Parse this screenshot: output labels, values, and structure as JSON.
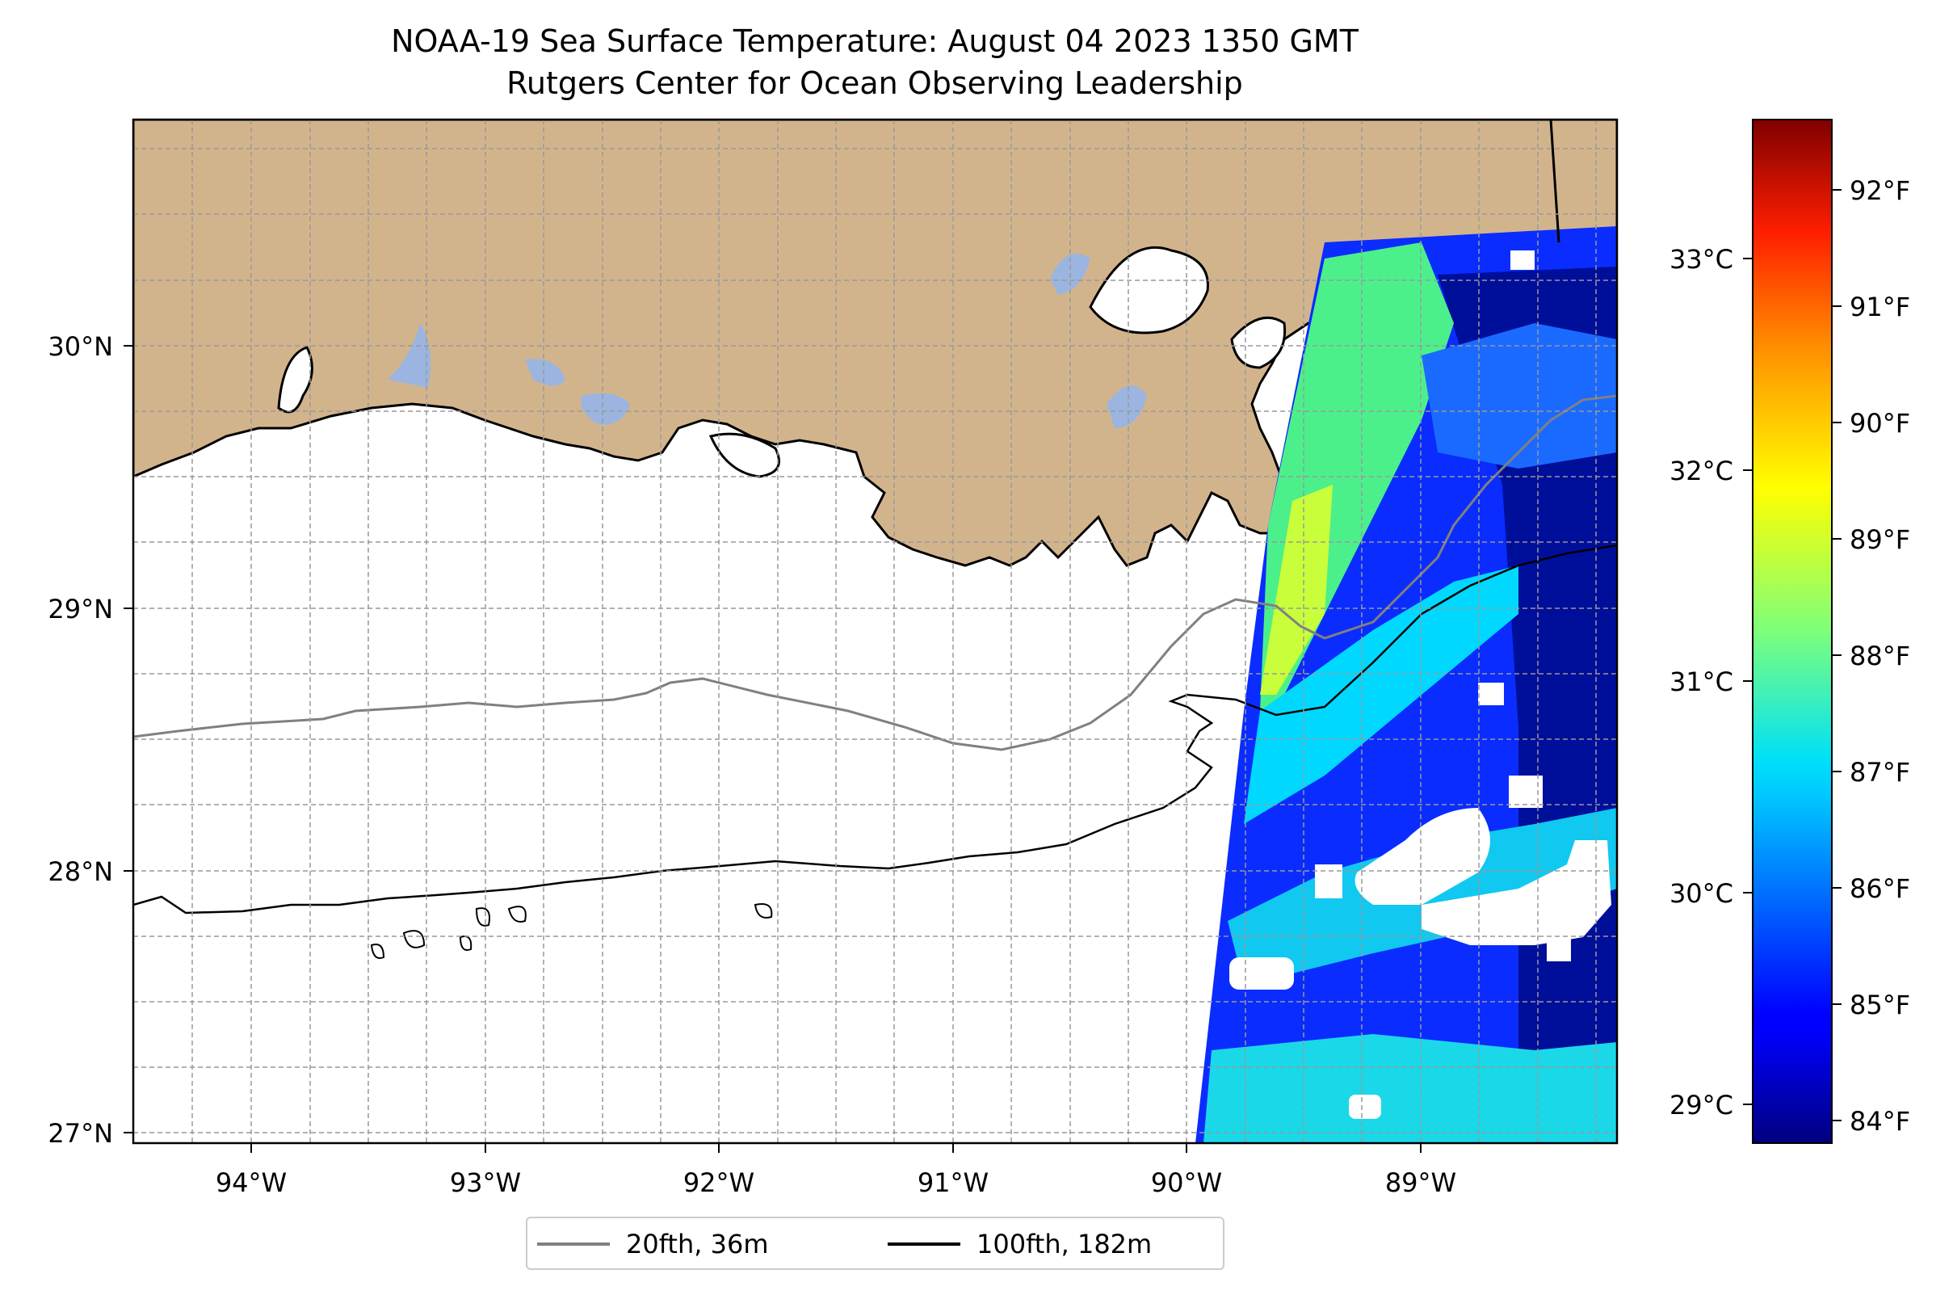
{
  "title": {
    "line1": "NOAA-19 Sea Surface Temperature: August 04 2023 1350 GMT",
    "line2": "Rutgers Center for Ocean Observing Leadership"
  },
  "map": {
    "lon_range": [
      -94.55,
      -88.2
    ],
    "lat_range": [
      26.93,
      30.84
    ],
    "lon_ticks": [
      -94,
      -93,
      -92,
      -91,
      -90,
      -89
    ],
    "lon_tick_labels": [
      "94°W",
      "93°W",
      "92°W",
      "91°W",
      "90°W",
      "89°W"
    ],
    "lat_ticks": [
      27,
      28,
      29,
      30
    ],
    "lat_tick_labels": [
      "27°N",
      "28°N",
      "29°N",
      "30°N"
    ],
    "grid": true,
    "colors": {
      "land": "#d2b48c",
      "lakes": "#9bb5e0",
      "ocean_nodata": "#ffffff",
      "isobath_20fth": "#808080",
      "isobath_100fth": "#000000"
    }
  },
  "legend": {
    "placement": "bottom-center",
    "items": [
      {
        "label": "20fth, 36m",
        "color": "#808080"
      },
      {
        "label": "100fth, 182m",
        "color": "#000000"
      }
    ]
  },
  "colorbar": {
    "colormap": "jet",
    "f_range": [
      83.8,
      92.6
    ],
    "f_ticks": [
      84,
      85,
      86,
      87,
      88,
      89,
      90,
      91,
      92
    ],
    "f_tick_labels": [
      "84°F",
      "85°F",
      "86°F",
      "87°F",
      "88°F",
      "89°F",
      "90°F",
      "91°F",
      "92°F"
    ],
    "c_ticks": [
      29,
      30,
      31,
      32,
      33
    ],
    "c_tick_labels": [
      "29°C",
      "30°C",
      "31°C",
      "32°C",
      "33°C"
    ]
  }
}
